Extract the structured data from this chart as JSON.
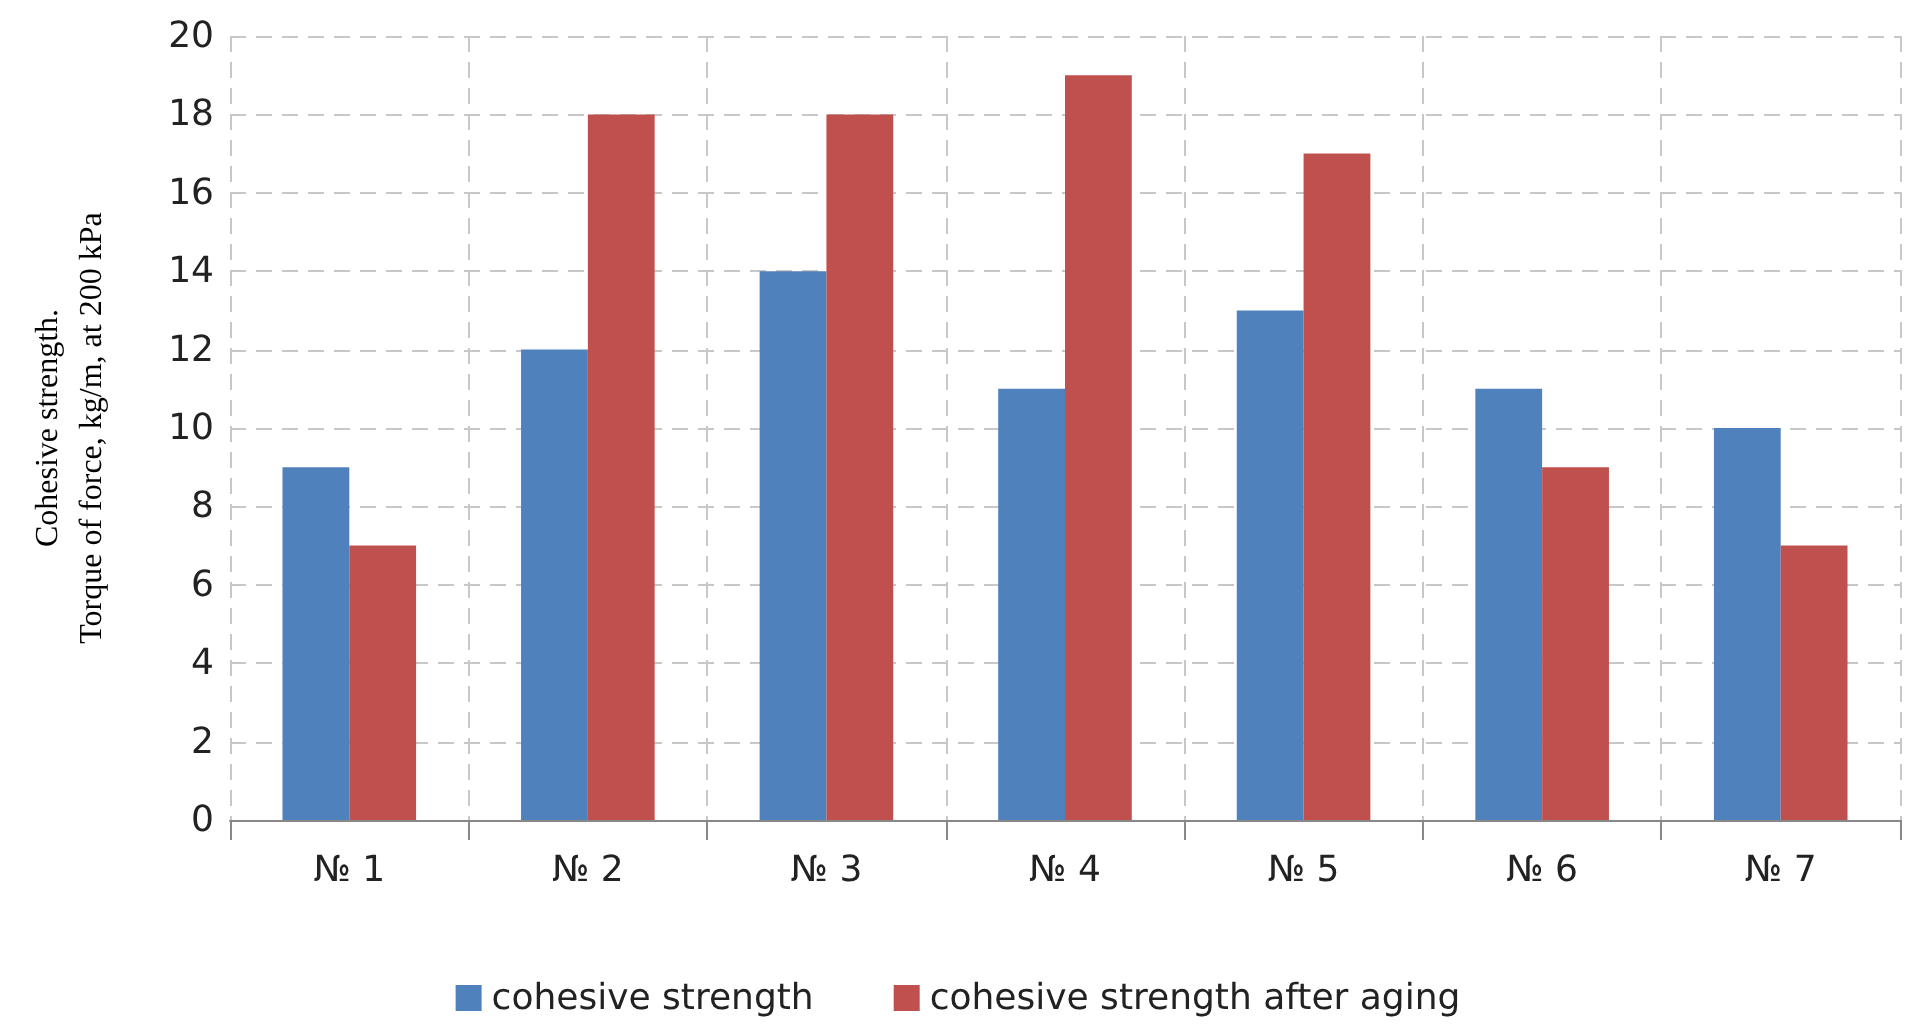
{
  "chart_data": {
    "type": "bar",
    "ylabel": "Cohesive strength.\nTorque of force, kg/m, at 200 kPa",
    "categories": [
      "№ 1",
      "№ 2",
      "№ 3",
      "№ 4",
      "№ 5",
      "№ 6",
      "№ 7"
    ],
    "series": [
      {
        "name": "cohesive strength",
        "color": "#4f81bd",
        "values": [
          9,
          12,
          14,
          11,
          13,
          11,
          10
        ]
      },
      {
        "name": "cohesive strength after aging",
        "color": "#c0504d",
        "values": [
          7,
          18,
          18,
          19,
          17,
          9,
          7
        ]
      }
    ],
    "ylim": [
      0,
      20
    ],
    "yticks": [
      0,
      2,
      4,
      6,
      8,
      10,
      12,
      14,
      16,
      18,
      20
    ],
    "grid": true,
    "legend": "bottom"
  }
}
